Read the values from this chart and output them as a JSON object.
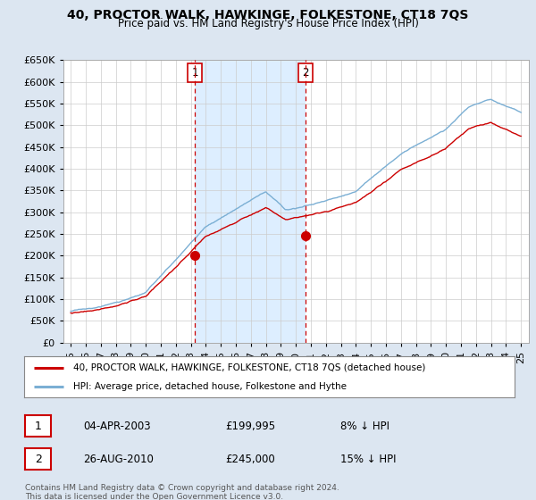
{
  "title": "40, PROCTOR WALK, HAWKINGE, FOLKESTONE, CT18 7QS",
  "subtitle": "Price paid vs. HM Land Registry's House Price Index (HPI)",
  "legend_line1": "40, PROCTOR WALK, HAWKINGE, FOLKESTONE, CT18 7QS (detached house)",
  "legend_line2": "HPI: Average price, detached house, Folkestone and Hythe",
  "annotation1_date": "04-APR-2003",
  "annotation1_price": "£199,995",
  "annotation1_hpi": "8% ↓ HPI",
  "annotation2_date": "26-AUG-2010",
  "annotation2_price": "£245,000",
  "annotation2_hpi": "15% ↓ HPI",
  "footer": "Contains HM Land Registry data © Crown copyright and database right 2024.\nThis data is licensed under the Open Government Licence v3.0.",
  "sale1_year": 2003.27,
  "sale1_value": 199995,
  "sale2_year": 2010.65,
  "sale2_value": 245000,
  "hpi_color": "#7bafd4",
  "price_color": "#cc0000",
  "background_color": "#dce6f1",
  "plot_bg_color": "#ffffff",
  "shade_color": "#ddeeff",
  "vline_color": "#cc0000",
  "ylim": [
    0,
    650000
  ],
  "yticks": [
    0,
    50000,
    100000,
    150000,
    200000,
    250000,
    300000,
    350000,
    400000,
    450000,
    500000,
    550000,
    600000,
    650000
  ],
  "xlabel_years": [
    "95",
    "96",
    "97",
    "98",
    "99",
    "00",
    "01",
    "02",
    "03",
    "04",
    "05",
    "06",
    "07",
    "08",
    "09",
    "10",
    "11",
    "12",
    "13",
    "14",
    "15",
    "16",
    "17",
    "18",
    "19",
    "20",
    "21",
    "22",
    "23",
    "24",
    "25"
  ],
  "xlabel_year_vals": [
    1995,
    1996,
    1997,
    1998,
    1999,
    2000,
    2001,
    2002,
    2003,
    2004,
    2005,
    2006,
    2007,
    2008,
    2009,
    2010,
    2011,
    2012,
    2013,
    2014,
    2015,
    2016,
    2017,
    2018,
    2019,
    2020,
    2021,
    2022,
    2023,
    2024,
    2025
  ]
}
